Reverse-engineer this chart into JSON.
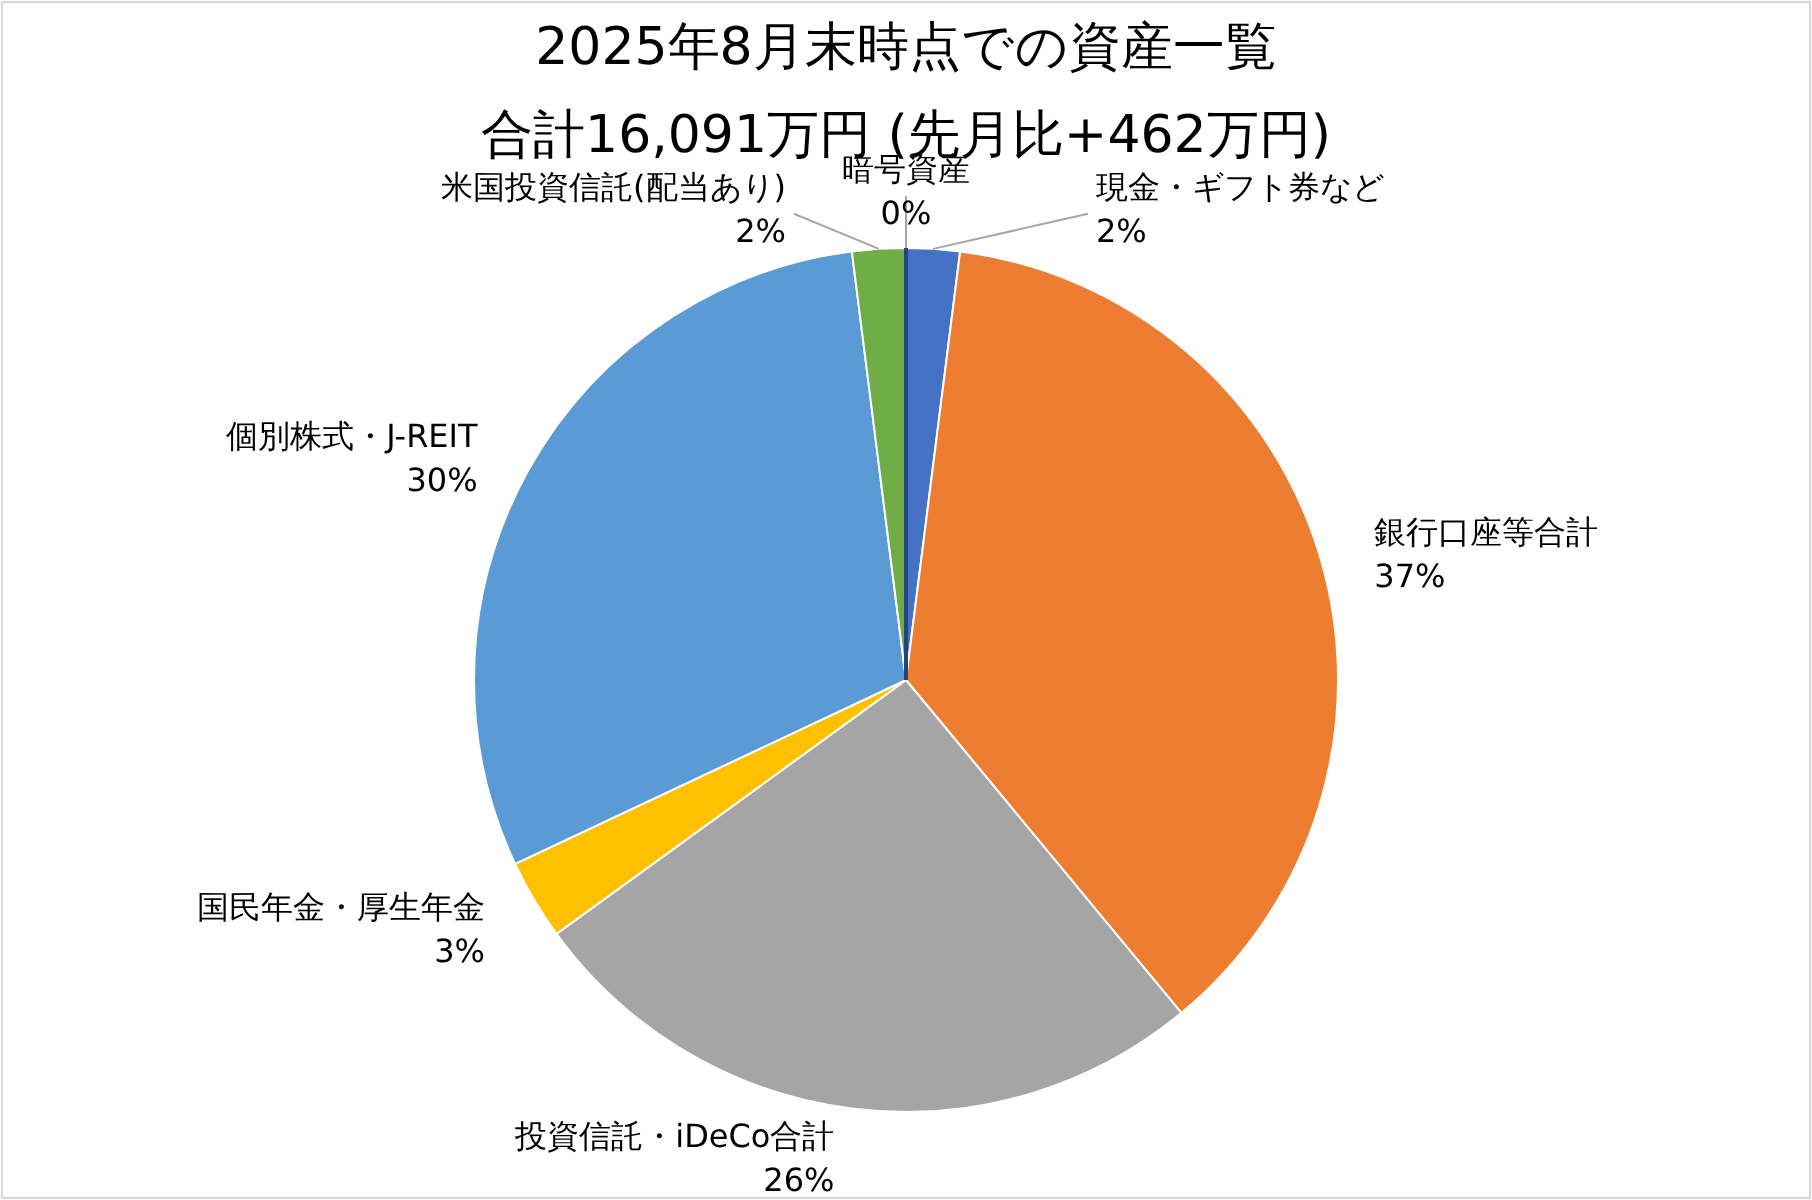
{
  "chart_data": {
    "type": "pie",
    "title": "2025年8月末時点での資産一覧",
    "subtitle": "合計16,091万円 (先月比+462万円)",
    "categories": [
      "現金・ギフト券など",
      "銀行口座等合計",
      "投資信託・iDeCo合計",
      "国民年金・厚生年金",
      "個別株式・J-REIT",
      "米国投資信託(配当あり)",
      "暗号資産"
    ],
    "values": [
      2,
      37,
      26,
      3,
      30,
      2,
      0
    ],
    "colors": [
      "#4472c4",
      "#ed7d31",
      "#a5a5a5",
      "#ffc000",
      "#5b9bd5",
      "#70ad47",
      "#264478"
    ],
    "value_labels": [
      "2%",
      "37%",
      "26%",
      "3%",
      "30%",
      "2%",
      "0%"
    ],
    "legend": false
  }
}
